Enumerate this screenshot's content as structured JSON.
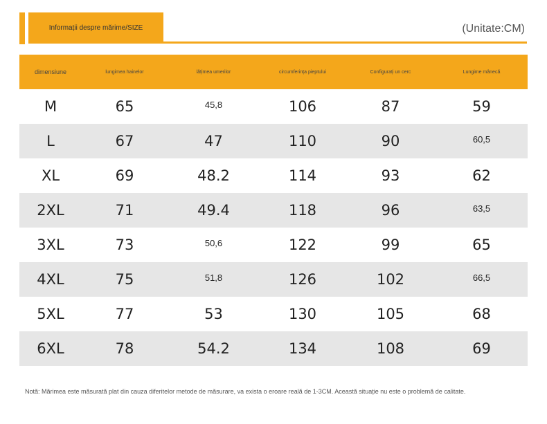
{
  "header": {
    "title": "Informații despre mărime/SIZE",
    "unit": "(Unitate:CM)",
    "accent_color": "#F4A71B"
  },
  "table": {
    "columns": [
      "dimensiune",
      "lungimea hainelor",
      "lățimea umerilor",
      "circumferința pieptului",
      "Configurați un cerc",
      "Lungime mânecă"
    ],
    "rows": [
      [
        "M",
        "65",
        "45,8",
        "106",
        "87",
        "59"
      ],
      [
        "L",
        "67",
        "47",
        "110",
        "90",
        "60,5"
      ],
      [
        "XL",
        "69",
        "48.2",
        "114",
        "93",
        "62"
      ],
      [
        "2XL",
        "71",
        "49.4",
        "118",
        "96",
        "63,5"
      ],
      [
        "3XL",
        "73",
        "50,6",
        "122",
        "99",
        "65"
      ],
      [
        "4XL",
        "75",
        "51,8",
        "126",
        "102",
        "66,5"
      ],
      [
        "5XL",
        "77",
        "53",
        "130",
        "105",
        "68"
      ],
      [
        "6XL",
        "78",
        "54.2",
        "134",
        "108",
        "69"
      ]
    ]
  },
  "note": "Notă: Mărimea este măsurată plat din cauza diferitelor metode de măsurare, va exista o eroare reală de 1-3CM. Această situație nu este o problemă de calitate."
}
